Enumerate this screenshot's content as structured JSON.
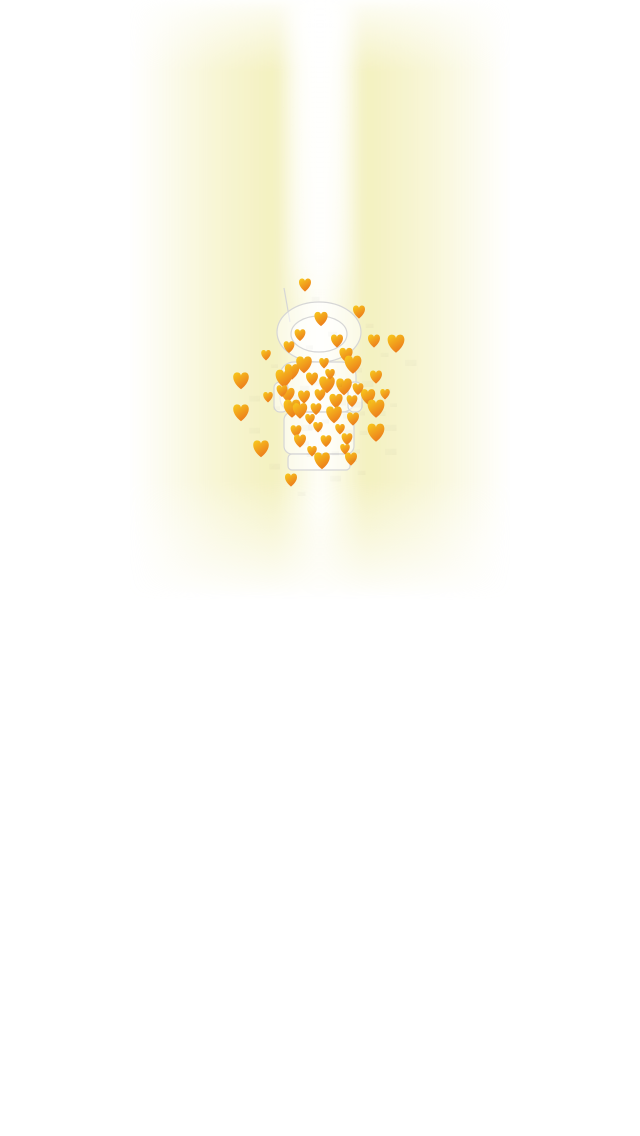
{
  "scene": {
    "background_color": "#ffffff",
    "beam_color": "#f2eeb4",
    "heart_gradient_top": "#f7c21c",
    "heart_gradient_bottom": "#ee7d1c"
  },
  "character": {
    "icon": "robot-figure-icon",
    "outline_color": "#d8d8d8"
  },
  "hearts": {
    "icon": "heart-icon",
    "count": 52
  }
}
